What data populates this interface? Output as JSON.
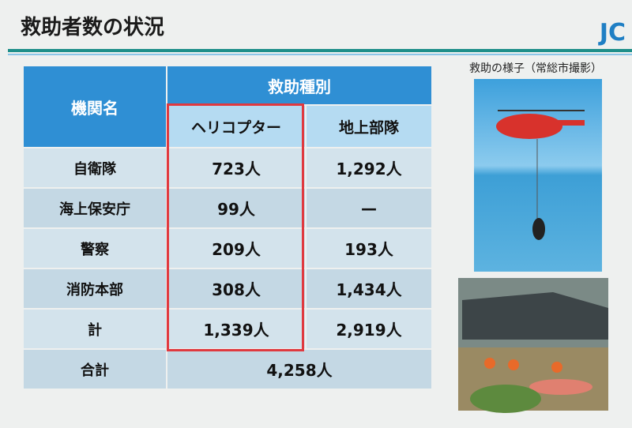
{
  "header": {
    "title": "救助者数の状況",
    "logo": "JC"
  },
  "photos": {
    "caption": "救助の様子（常総市撮影）"
  },
  "table": {
    "header": {
      "agency": "機関名",
      "type": "救助種別",
      "sub": [
        "ヘリコプター",
        "地上部隊"
      ]
    },
    "rows": [
      [
        "自衛隊",
        "723人",
        "1,292人"
      ],
      [
        "海上保安庁",
        "99人",
        "—"
      ],
      [
        "警察",
        "209人",
        "193人"
      ],
      [
        "消防本部",
        "308人",
        "1,434人"
      ],
      [
        "計",
        "1,339人",
        "2,919人"
      ]
    ],
    "total": [
      "合計",
      "4,258人"
    ]
  }
}
